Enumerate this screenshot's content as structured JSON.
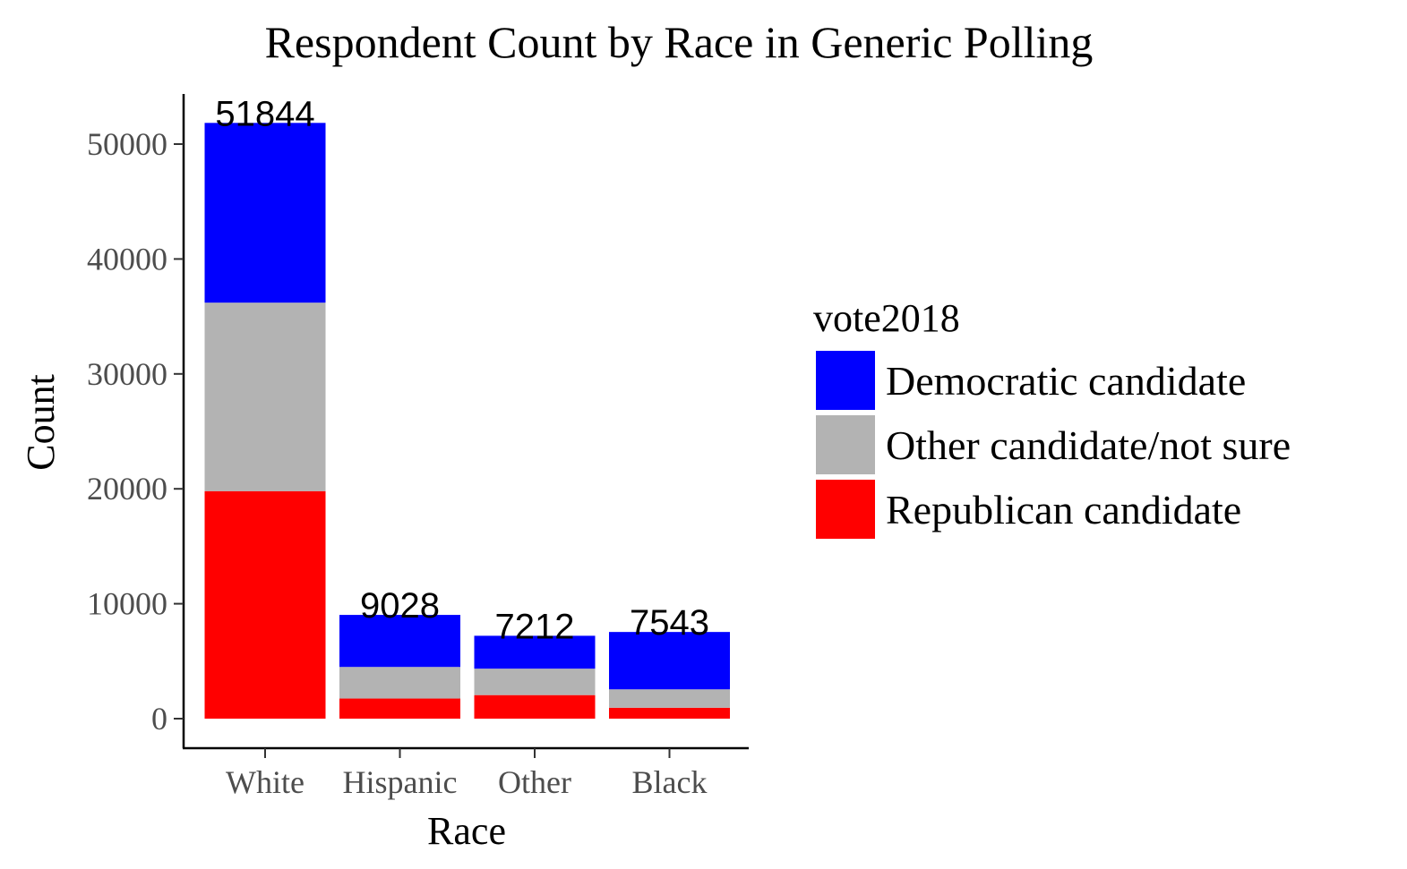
{
  "chart_data": {
    "type": "bar",
    "stacked": true,
    "title": "Respondent Count by Race in Generic Polling",
    "xlabel": "Race",
    "ylabel": "Count",
    "ylim": [
      0,
      54000
    ],
    "yticks": [
      0,
      10000,
      20000,
      30000,
      40000,
      50000
    ],
    "categories": [
      "White",
      "Hispanic",
      "Other",
      "Black"
    ],
    "totals": [
      51844,
      9028,
      7212,
      7543
    ],
    "series": [
      {
        "name": "Republican candidate",
        "color": "#ff0000",
        "values": [
          19800,
          1750,
          2050,
          950
        ]
      },
      {
        "name": "Other candidate/not sure",
        "color": "#b3b3b3",
        "values": [
          16400,
          2750,
          2300,
          1600
        ]
      },
      {
        "name": "Democratic candidate",
        "color": "#0000ff",
        "values": [
          15644,
          4528,
          2862,
          4993
        ]
      }
    ],
    "legend": {
      "title": "vote2018",
      "position": "right",
      "order": [
        "Democratic candidate",
        "Other candidate/not sure",
        "Republican candidate"
      ]
    },
    "grid": false
  }
}
